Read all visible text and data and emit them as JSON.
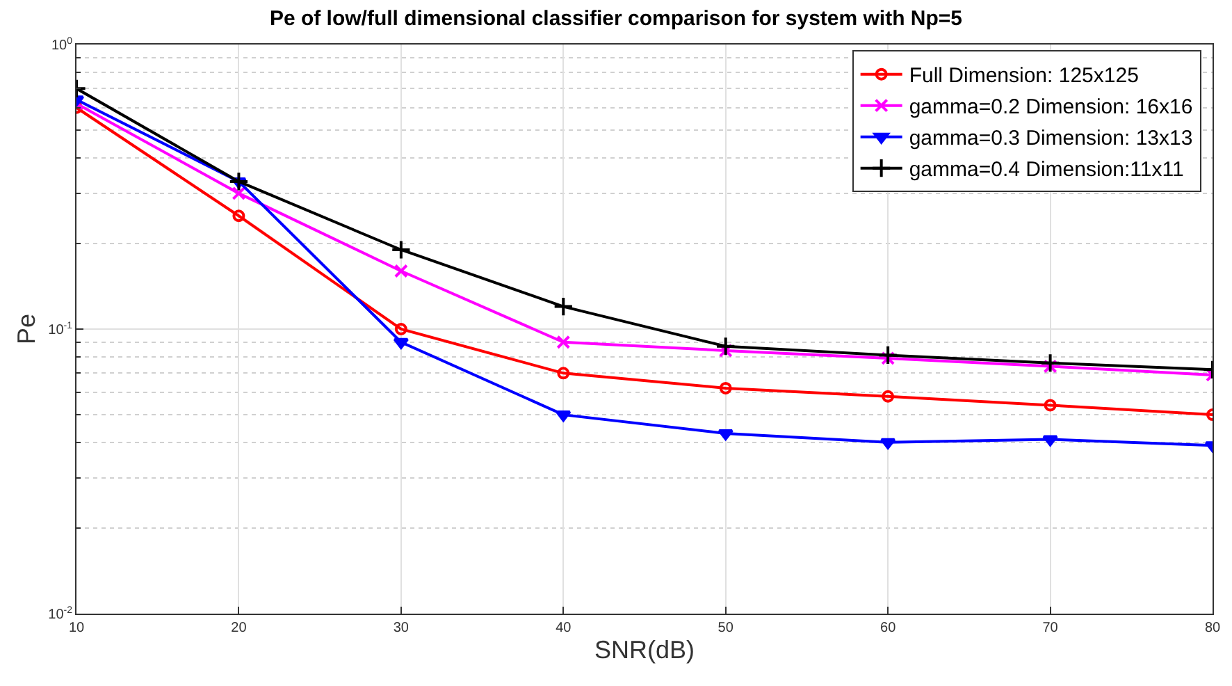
{
  "chart_data": {
    "type": "line",
    "title": "Pe of low/full dimensional classifier comparison for system with Np=5",
    "xlabel": "SNR(dB)",
    "ylabel": "Pe",
    "x": [
      10,
      20,
      30,
      40,
      50,
      60,
      70,
      80
    ],
    "series": [
      {
        "name": "Full Dimension: 125x125",
        "color": "#ff0000",
        "marker": "circle",
        "values": [
          0.6,
          0.25,
          0.1,
          0.07,
          0.062,
          0.058,
          0.054,
          0.05
        ]
      },
      {
        "name": "gamma=0.2 Dimension: 16x16",
        "color": "#ff00ff",
        "marker": "x",
        "values": [
          0.62,
          0.3,
          0.16,
          0.09,
          0.084,
          0.079,
          0.074,
          0.069
        ]
      },
      {
        "name": "gamma=0.3 Dimension: 13x13",
        "color": "#0000ff",
        "marker": "triangle",
        "values": [
          0.64,
          0.33,
          0.09,
          0.05,
          0.043,
          0.04,
          0.041,
          0.039
        ]
      },
      {
        "name": "gamma=0.4 Dimension:11x11",
        "color": "#000000",
        "marker": "cross",
        "values": [
          0.7,
          0.33,
          0.19,
          0.12,
          0.087,
          0.081,
          0.076,
          0.072
        ]
      }
    ],
    "log": "y",
    "grid": true,
    "legend": "top right",
    "line_style": "solid",
    "xlim": [
      10,
      80
    ],
    "xticks": [
      10,
      20,
      30,
      40,
      50,
      60,
      70,
      80
    ],
    "ylim": [
      0.01,
      1
    ],
    "yticks": [
      {
        "value": 0.01,
        "label": "10$^{-2}$"
      },
      {
        "value": 0.1,
        "label": "10$^{-1}$"
      },
      {
        "value": 1,
        "label": "10$^{0}$"
      }
    ]
  }
}
